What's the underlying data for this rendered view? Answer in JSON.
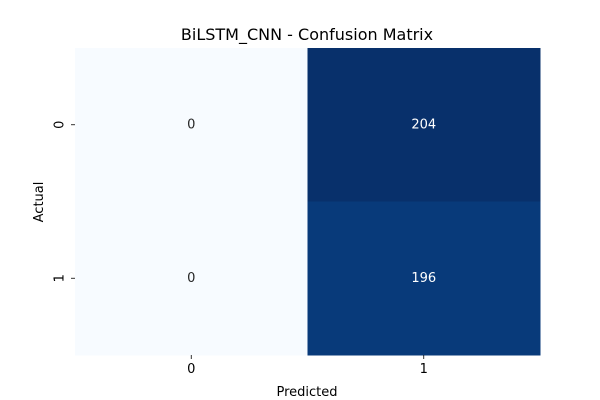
{
  "chart_data": {
    "type": "heatmap",
    "title": "BiLSTM_CNN - Confusion Matrix",
    "xlabel": "Predicted",
    "ylabel": "Actual",
    "x_categories": [
      "0",
      "1"
    ],
    "y_categories": [
      "0",
      "1"
    ],
    "values": [
      [
        0,
        204
      ],
      [
        0,
        196
      ]
    ],
    "colormap": "Blues",
    "low_color": "#f7fbff",
    "high_color": "#08306b",
    "light_text_color": "#ffffff",
    "dark_text_color": "#262626"
  }
}
